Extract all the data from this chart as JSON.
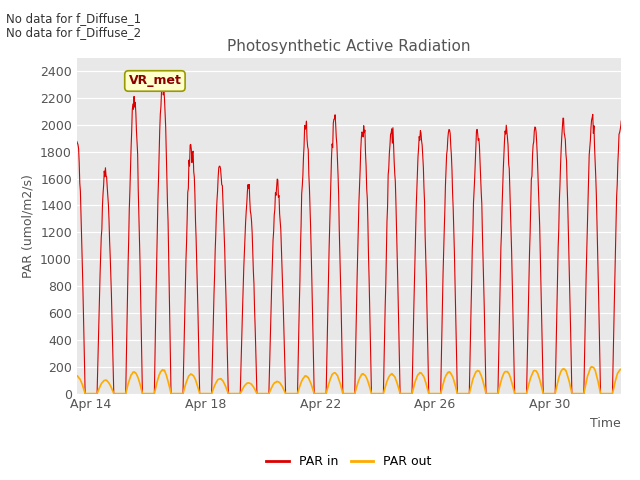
{
  "title": "Photosynthetic Active Radiation",
  "ylabel": "PAR (umol/m2/s)",
  "xlabel": "Time",
  "annotation_lines": [
    "No data for f_Diffuse_1",
    "No data for f_Diffuse_2"
  ],
  "legend_box_label": "VR_met",
  "legend_labels": [
    "PAR in",
    "PAR out"
  ],
  "line_colors": [
    "#dd0000",
    "#ffaa00"
  ],
  "fig_bg_color": "#ffffff",
  "plot_bg_color": "#e8e8e8",
  "ylim": [
    0,
    2500
  ],
  "yticks": [
    0,
    200,
    400,
    600,
    800,
    1000,
    1200,
    1400,
    1600,
    1800,
    2000,
    2200,
    2400
  ],
  "xtick_labels": [
    "Apr 14",
    "Apr 18",
    "Apr 22",
    "Apr 26",
    "Apr 30"
  ],
  "day_peaks_in": [
    1900,
    1650,
    2200,
    2300,
    1850,
    1680,
    1500,
    1550,
    1980,
    2040,
    1980,
    1980,
    1950,
    1950,
    1940,
    1950,
    1970,
    1980,
    2050,
    1980
  ],
  "day_peaks_out": [
    130,
    100,
    160,
    175,
    145,
    110,
    80,
    90,
    130,
    155,
    145,
    145,
    155,
    160,
    170,
    165,
    170,
    185,
    200,
    180
  ]
}
